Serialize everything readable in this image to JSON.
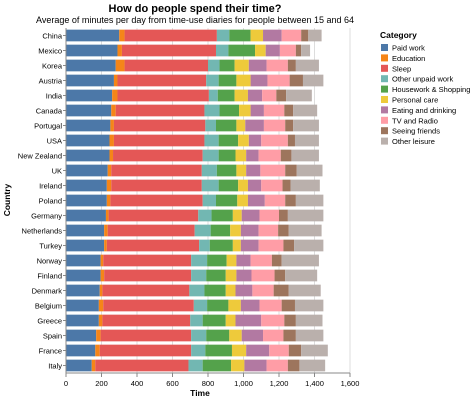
{
  "chart_data": {
    "type": "bar",
    "orientation": "horizontal",
    "stacked": true,
    "title": "How do people spend their time?",
    "subtitle": "Average of minutes per day from time-use diaries for people between 15 and 64",
    "xlabel": "Time",
    "ylabel": "Country",
    "xlim": [
      0,
      1600
    ],
    "xticks": [
      "0",
      "200",
      "400",
      "600",
      "800",
      "1,000",
      "1,200",
      "1,400",
      "1,600"
    ],
    "grid": true,
    "legend_title": "Category",
    "legend_position": "right",
    "categories": [
      "China",
      "Mexico",
      "Korea",
      "Austria",
      "India",
      "Canada",
      "Portugal",
      "USA",
      "New Zealand",
      "UK",
      "Ireland",
      "Poland",
      "Germany",
      "Netherlands",
      "Turkey",
      "Norway",
      "Finland",
      "Denmark",
      "Belgium",
      "Greece",
      "Spain",
      "France",
      "Italy"
    ],
    "series": [
      {
        "name": "Paid work",
        "color": "#4c78a8",
        "values": [
          300,
          290,
          280,
          270,
          260,
          255,
          250,
          245,
          245,
          235,
          230,
          230,
          225,
          215,
          215,
          195,
          195,
          190,
          185,
          185,
          170,
          165,
          145
        ]
      },
      {
        "name": "Education",
        "color": "#f58518",
        "values": [
          30,
          25,
          50,
          20,
          30,
          25,
          20,
          25,
          20,
          20,
          25,
          20,
          15,
          20,
          15,
          15,
          20,
          15,
          25,
          20,
          25,
          25,
          20
        ]
      },
      {
        "name": "Sleep",
        "color": "#e45756",
        "values": [
          520,
          530,
          470,
          500,
          515,
          500,
          515,
          510,
          505,
          510,
          510,
          520,
          505,
          490,
          520,
          495,
          490,
          490,
          510,
          495,
          510,
          515,
          525
        ]
      },
      {
        "name": "Other unpaid work",
        "color": "#72b7b2",
        "values": [
          70,
          70,
          65,
          70,
          50,
          85,
          60,
          80,
          90,
          85,
          95,
          75,
          75,
          90,
          60,
          90,
          85,
          85,
          75,
          70,
          85,
          80,
          80
        ]
      },
      {
        "name": "Housework & Shopping",
        "color": "#54a24b",
        "values": [
          120,
          150,
          85,
          100,
          95,
          110,
          115,
          110,
          95,
          110,
          110,
          120,
          120,
          110,
          130,
          110,
          110,
          120,
          120,
          130,
          130,
          150,
          160
        ]
      },
      {
        "name": "Personal care",
        "color": "#eeca3b",
        "values": [
          70,
          60,
          80,
          80,
          75,
          65,
          50,
          60,
          60,
          55,
          55,
          60,
          50,
          60,
          45,
          55,
          60,
          55,
          70,
          55,
          70,
          80,
          75
        ]
      },
      {
        "name": "Eating and drinking",
        "color": "#b279a2",
        "values": [
          105,
          80,
          100,
          95,
          80,
          75,
          105,
          70,
          70,
          80,
          75,
          95,
          100,
          100,
          100,
          80,
          85,
          95,
          105,
          145,
          120,
          130,
          125
        ]
      },
      {
        "name": "TV and Radio",
        "color": "#ff9da6",
        "values": [
          110,
          90,
          120,
          125,
          80,
          115,
          120,
          150,
          125,
          140,
          120,
          115,
          110,
          110,
          140,
          120,
          130,
          120,
          125,
          130,
          115,
          110,
          120
        ]
      },
      {
        "name": "Seeing friends",
        "color": "#9d755d",
        "values": [
          40,
          30,
          45,
          75,
          55,
          50,
          45,
          40,
          60,
          65,
          45,
          60,
          50,
          60,
          60,
          55,
          60,
          85,
          75,
          65,
          70,
          70,
          65
        ]
      },
      {
        "name": "Other leisure",
        "color": "#bab0ac",
        "values": [
          75,
          50,
          130,
          115,
          145,
          135,
          145,
          135,
          155,
          145,
          165,
          155,
          200,
          185,
          165,
          210,
          180,
          180,
          160,
          150,
          155,
          150,
          145
        ]
      }
    ]
  }
}
